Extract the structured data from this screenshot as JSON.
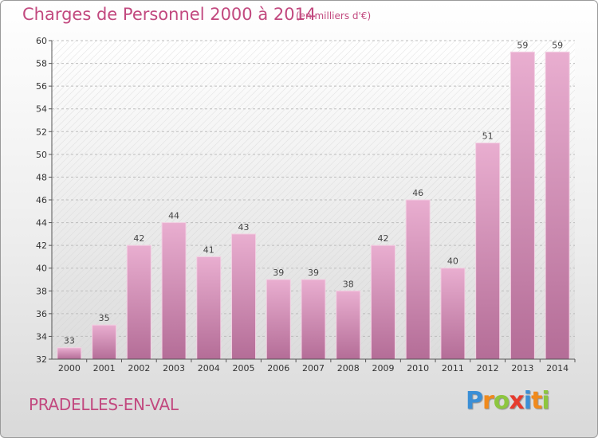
{
  "header": {
    "title": "Charges de Personnel 2000 à 2014",
    "subtitle": "(en milliers d'€)"
  },
  "footer": {
    "commune": "PRADELLES-EN-VAL",
    "logo_letters": [
      "P",
      "r",
      "o",
      "x",
      "i",
      "t",
      "i"
    ],
    "logo": "Proxiti"
  },
  "colors": {
    "title": "#c2497f",
    "bar_top": "#e9aed0",
    "bar_bottom": "#b46d97",
    "logo": [
      "#3b8fd6",
      "#f08a1c",
      "#8dc63f",
      "#e63b2e",
      "#3b8fd6",
      "#f08a1c",
      "#8dc63f"
    ]
  },
  "chart_data": {
    "type": "bar",
    "categories": [
      "2000",
      "2001",
      "2002",
      "2003",
      "2004",
      "2005",
      "2006",
      "2007",
      "2008",
      "2009",
      "2010",
      "2011",
      "2012",
      "2013",
      "2014"
    ],
    "values": [
      33,
      35,
      42,
      44,
      41,
      43,
      39,
      39,
      38,
      42,
      46,
      40,
      51,
      59,
      59
    ],
    "title": "Charges de Personnel 2000 à 2014",
    "subtitle": "(en milliers d'€)",
    "ylim": [
      32,
      60
    ],
    "yticks": [
      32,
      34,
      36,
      38,
      40,
      42,
      44,
      46,
      48,
      50,
      52,
      54,
      56,
      58,
      60
    ],
    "grid": true
  }
}
